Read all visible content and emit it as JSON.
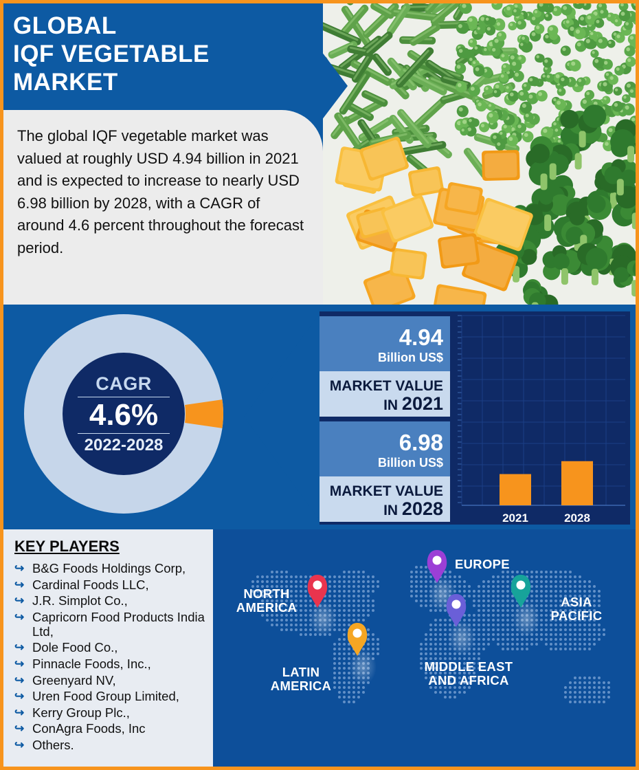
{
  "title": {
    "line1": "GLOBAL",
    "line2": "IQF VEGETABLE",
    "line3": "MARKET"
  },
  "description": "The global IQF vegetable market was valued at roughly USD 4.94 billion in 2021 and is expected to increase to nearly USD 6.98 billion by 2028, with a CAGR of around 4.6 percent throughout the forecast period.",
  "cagr": {
    "label": "CAGR",
    "value": "4.6%",
    "period": "2022-2028",
    "share": 0.046
  },
  "stats": [
    {
      "value": "4.94",
      "unit": "Billion US$",
      "label_line1": "MARKET VALUE",
      "label_prefix": "IN ",
      "year": "2021"
    },
    {
      "value": "6.98",
      "unit": "Billion US$",
      "label_line1": "MARKET VALUE",
      "label_prefix": "IN ",
      "year": "2028"
    }
  ],
  "chart_data": {
    "type": "bar",
    "categories": [
      "2021",
      "2028"
    ],
    "values": [
      4.94,
      6.98
    ]
  },
  "key_players": {
    "title": "KEY PLAYERS",
    "items": [
      "B&G Foods Holdings Corp,",
      "Cardinal Foods LLC,",
      "J.R. Simplot Co.,",
      "Capricorn Food Products India Ltd,",
      "Dole Food Co.,",
      "Pinnacle Foods, Inc.,",
      "Greenyard NV,",
      "Uren Food Group Limited,",
      "Kerry Group Plc.,",
      "ConAgra Foods, Inc",
      "Others."
    ]
  },
  "regions": {
    "north_america": "NORTH AMERICA",
    "europe": "EUROPE",
    "asia_pacific": "ASIA PACIFIC",
    "latin_america": "LATIN AMERICA",
    "mea": "MIDDLE EAST AND AFRICA"
  },
  "colors": {
    "brand_blue": "#0d5aa3",
    "navy": "#0f2a66",
    "orange": "#f7941d",
    "light_blue": "#c9daee",
    "pin_north_america": "#e9344e",
    "pin_europe": "#9b3fd6",
    "pin_asia": "#17a39a",
    "pin_latin": "#f5a623",
    "pin_mea": "#6a5fd8"
  }
}
